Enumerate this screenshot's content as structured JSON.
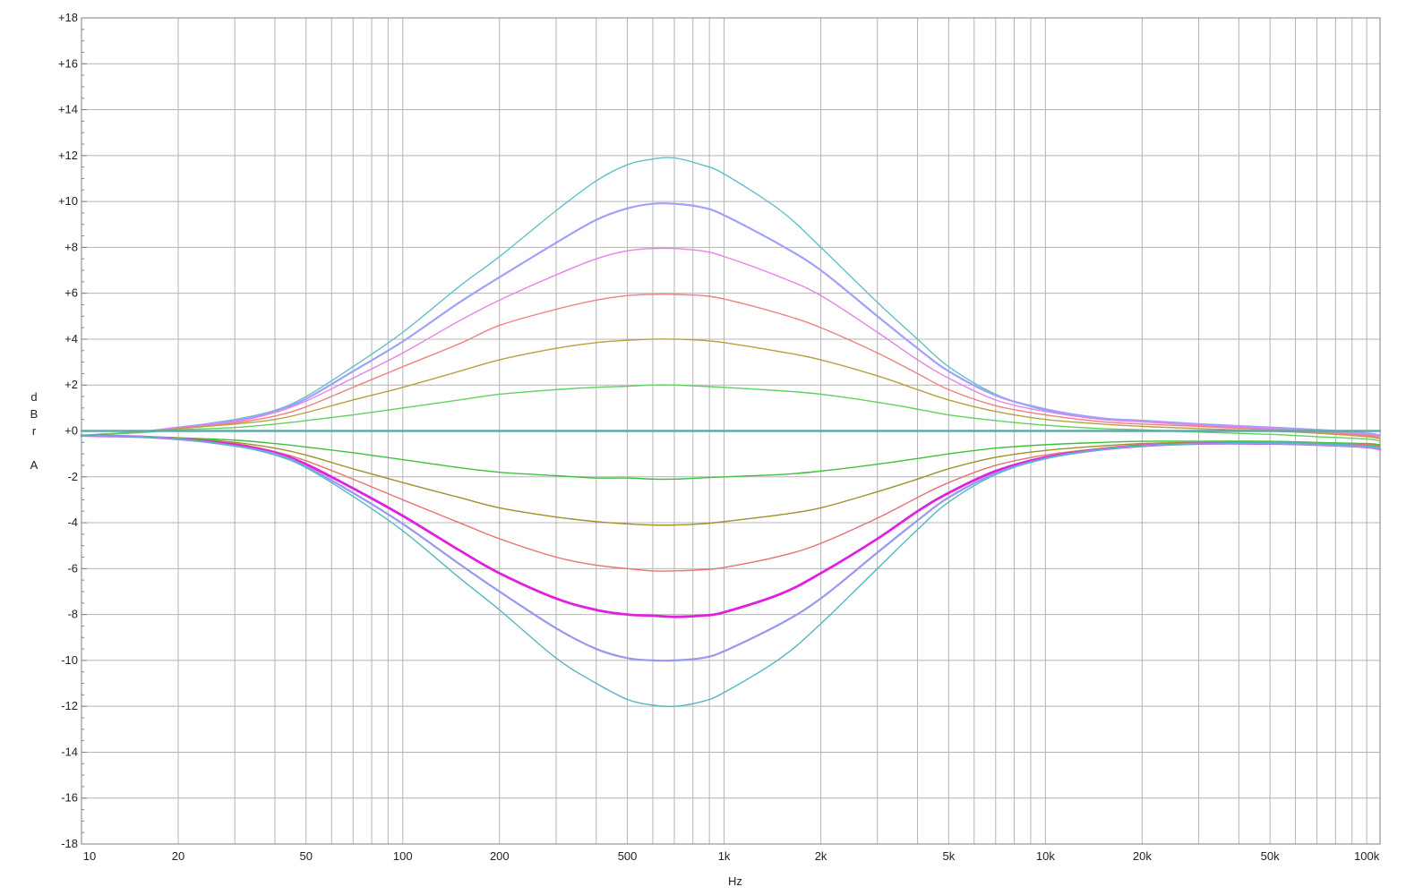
{
  "chart_data": {
    "type": "line",
    "title": "",
    "xlabel": "Hz",
    "ylabel_lines": [
      "d",
      "B",
      "r",
      "",
      "A"
    ],
    "x_scale": "log",
    "xlim": [
      10,
      110000
    ],
    "ylim": [
      -18,
      18
    ],
    "grid": true,
    "x_ticks": [
      {
        "value": 10,
        "label": "10"
      },
      {
        "value": 20,
        "label": "20"
      },
      {
        "value": 50,
        "label": "50"
      },
      {
        "value": 100,
        "label": "100"
      },
      {
        "value": 200,
        "label": "200"
      },
      {
        "value": 500,
        "label": "500"
      },
      {
        "value": 1000,
        "label": "1k"
      },
      {
        "value": 2000,
        "label": "2k"
      },
      {
        "value": 5000,
        "label": "5k"
      },
      {
        "value": 10000,
        "label": "10k"
      },
      {
        "value": 20000,
        "label": "20k"
      },
      {
        "value": 50000,
        "label": "50k"
      },
      {
        "value": 100000,
        "label": "100k"
      }
    ],
    "x_gridlines": [
      10,
      20,
      30,
      40,
      50,
      60,
      70,
      80,
      90,
      100,
      200,
      300,
      400,
      500,
      600,
      700,
      800,
      900,
      1000,
      2000,
      3000,
      4000,
      5000,
      6000,
      7000,
      8000,
      9000,
      10000,
      20000,
      30000,
      40000,
      50000,
      60000,
      70000,
      80000,
      90000,
      100000
    ],
    "y_ticks": [
      {
        "value": 18,
        "label": "+18"
      },
      {
        "value": 16,
        "label": "+16"
      },
      {
        "value": 14,
        "label": "+14"
      },
      {
        "value": 12,
        "label": "+12"
      },
      {
        "value": 10,
        "label": "+10"
      },
      {
        "value": 8,
        "label": "+8"
      },
      {
        "value": 6,
        "label": "+6"
      },
      {
        "value": 4,
        "label": "+4"
      },
      {
        "value": 2,
        "label": "+2"
      },
      {
        "value": 0,
        "label": "+0"
      },
      {
        "value": -2,
        "label": "-2"
      },
      {
        "value": -4,
        "label": "-4"
      },
      {
        "value": -6,
        "label": "-6"
      },
      {
        "value": -8,
        "label": "-8"
      },
      {
        "value": -10,
        "label": "-10"
      },
      {
        "value": -12,
        "label": "-12"
      },
      {
        "value": -14,
        "label": "-14"
      },
      {
        "value": -16,
        "label": "-16"
      },
      {
        "value": -18,
        "label": "-18"
      }
    ],
    "x": [
      10,
      15,
      20,
      30,
      40,
      50,
      70,
      100,
      150,
      200,
      300,
      400,
      500,
      600,
      700,
      850,
      1000,
      1500,
      2000,
      3000,
      4000,
      5000,
      7000,
      10000,
      15000,
      20000,
      30000,
      50000,
      70000,
      100000,
      110000
    ],
    "series": [
      {
        "color": "#5fc0c8",
        "width": 1.4,
        "values": [
          -0.2,
          -0.05,
          0.15,
          0.5,
          0.9,
          1.5,
          2.8,
          4.3,
          6.3,
          7.6,
          9.6,
          10.9,
          11.6,
          11.85,
          11.9,
          11.6,
          11.2,
          9.6,
          8.0,
          5.6,
          4.0,
          2.8,
          1.6,
          0.9,
          0.55,
          0.4,
          0.25,
          0.1,
          0.0,
          -0.15,
          -0.25
        ]
      },
      {
        "color": "#a0a0ff",
        "width": 2.2,
        "values": [
          -0.2,
          -0.05,
          0.15,
          0.45,
          0.85,
          1.4,
          2.6,
          3.9,
          5.6,
          6.7,
          8.2,
          9.2,
          9.7,
          9.9,
          9.9,
          9.75,
          9.4,
          8.1,
          7.0,
          5.0,
          3.6,
          2.6,
          1.55,
          0.95,
          0.55,
          0.45,
          0.3,
          0.15,
          0.05,
          -0.1,
          -0.2
        ]
      },
      {
        "color": "#e880e8",
        "width": 1.4,
        "values": [
          -0.2,
          -0.05,
          0.15,
          0.4,
          0.8,
          1.3,
          2.3,
          3.4,
          4.8,
          5.7,
          6.8,
          7.5,
          7.85,
          7.95,
          7.95,
          7.85,
          7.6,
          6.7,
          5.9,
          4.3,
          3.1,
          2.3,
          1.35,
          0.85,
          0.5,
          0.4,
          0.25,
          0.1,
          0.0,
          -0.15,
          -0.25
        ]
      },
      {
        "color": "#f08080",
        "width": 1.4,
        "values": [
          -0.2,
          -0.05,
          0.1,
          0.35,
          0.65,
          1.05,
          1.9,
          2.8,
          3.8,
          4.6,
          5.3,
          5.7,
          5.9,
          5.95,
          5.95,
          5.9,
          5.75,
          5.1,
          4.5,
          3.4,
          2.5,
          1.8,
          1.1,
          0.7,
          0.4,
          0.3,
          0.2,
          0.05,
          -0.05,
          -0.2,
          -0.3
        ]
      },
      {
        "color": "#b8a040",
        "width": 1.4,
        "values": [
          -0.2,
          -0.05,
          0.1,
          0.3,
          0.5,
          0.8,
          1.35,
          1.9,
          2.6,
          3.1,
          3.6,
          3.85,
          3.95,
          4.0,
          4.0,
          3.95,
          3.85,
          3.45,
          3.1,
          2.4,
          1.8,
          1.35,
          0.85,
          0.5,
          0.3,
          0.2,
          0.1,
          0.0,
          -0.1,
          -0.25,
          -0.35
        ]
      },
      {
        "color": "#60d060",
        "width": 1.4,
        "values": [
          -0.2,
          -0.08,
          0.05,
          0.15,
          0.3,
          0.45,
          0.7,
          1.0,
          1.35,
          1.6,
          1.8,
          1.9,
          1.95,
          2.0,
          2.0,
          1.95,
          1.9,
          1.75,
          1.6,
          1.25,
          0.95,
          0.7,
          0.45,
          0.25,
          0.1,
          0.05,
          -0.05,
          -0.15,
          -0.25,
          -0.35,
          -0.45
        ]
      },
      {
        "color": "#60a8a8",
        "width": 2.4,
        "values": [
          0,
          0,
          0,
          0,
          0,
          0,
          0,
          0,
          0,
          0,
          0,
          0,
          0,
          0,
          0,
          0,
          0,
          0,
          0,
          0,
          0,
          0,
          0,
          0,
          0,
          0,
          0,
          0,
          0,
          0,
          0
        ]
      },
      {
        "color": "#40c040",
        "width": 1.4,
        "values": [
          -0.2,
          -0.25,
          -0.3,
          -0.4,
          -0.55,
          -0.7,
          -0.95,
          -1.25,
          -1.6,
          -1.8,
          -1.95,
          -2.05,
          -2.05,
          -2.1,
          -2.1,
          -2.05,
          -2.0,
          -1.9,
          -1.75,
          -1.45,
          -1.2,
          -1.0,
          -0.75,
          -0.6,
          -0.5,
          -0.45,
          -0.45,
          -0.45,
          -0.5,
          -0.55,
          -0.6
        ]
      },
      {
        "color": "#a09028",
        "width": 1.4,
        "values": [
          -0.2,
          -0.25,
          -0.3,
          -0.5,
          -0.75,
          -1.05,
          -1.65,
          -2.25,
          -2.9,
          -3.35,
          -3.75,
          -3.95,
          -4.05,
          -4.1,
          -4.1,
          -4.05,
          -3.95,
          -3.65,
          -3.35,
          -2.65,
          -2.1,
          -1.65,
          -1.15,
          -0.85,
          -0.65,
          -0.55,
          -0.5,
          -0.5,
          -0.55,
          -0.6,
          -0.65
        ]
      },
      {
        "color": "#e87070",
        "width": 1.4,
        "values": [
          -0.2,
          -0.25,
          -0.35,
          -0.55,
          -0.9,
          -1.3,
          -2.1,
          -3.0,
          -4.0,
          -4.7,
          -5.5,
          -5.85,
          -6.0,
          -6.1,
          -6.1,
          -6.05,
          -5.95,
          -5.45,
          -4.9,
          -3.8,
          -2.9,
          -2.25,
          -1.5,
          -1.05,
          -0.75,
          -0.6,
          -0.55,
          -0.5,
          -0.55,
          -0.6,
          -0.7
        ]
      },
      {
        "color": "#e020e0",
        "width": 2.8,
        "values": [
          -0.2,
          -0.25,
          -0.35,
          -0.6,
          -0.95,
          -1.45,
          -2.5,
          -3.7,
          -5.2,
          -6.2,
          -7.3,
          -7.8,
          -8.0,
          -8.05,
          -8.1,
          -8.05,
          -7.9,
          -7.1,
          -6.2,
          -4.7,
          -3.5,
          -2.7,
          -1.75,
          -1.15,
          -0.8,
          -0.65,
          -0.55,
          -0.55,
          -0.6,
          -0.7,
          -0.8
        ]
      },
      {
        "color": "#9898f0",
        "width": 2.2,
        "values": [
          -0.2,
          -0.25,
          -0.35,
          -0.65,
          -1.0,
          -1.55,
          -2.7,
          -4.05,
          -5.8,
          -7.0,
          -8.6,
          -9.5,
          -9.9,
          -10.0,
          -10.0,
          -9.9,
          -9.6,
          -8.4,
          -7.3,
          -5.3,
          -3.9,
          -2.9,
          -1.85,
          -1.2,
          -0.8,
          -0.65,
          -0.55,
          -0.55,
          -0.6,
          -0.7,
          -0.8
        ]
      },
      {
        "color": "#50b8c0",
        "width": 1.4,
        "values": [
          -0.2,
          -0.25,
          -0.35,
          -0.65,
          -1.05,
          -1.6,
          -2.85,
          -4.35,
          -6.4,
          -7.8,
          -9.9,
          -11.0,
          -11.7,
          -11.95,
          -12.0,
          -11.8,
          -11.4,
          -9.9,
          -8.4,
          -6.0,
          -4.3,
          -3.1,
          -1.9,
          -1.2,
          -0.8,
          -0.65,
          -0.55,
          -0.5,
          -0.55,
          -0.65,
          -0.75
        ]
      }
    ]
  }
}
